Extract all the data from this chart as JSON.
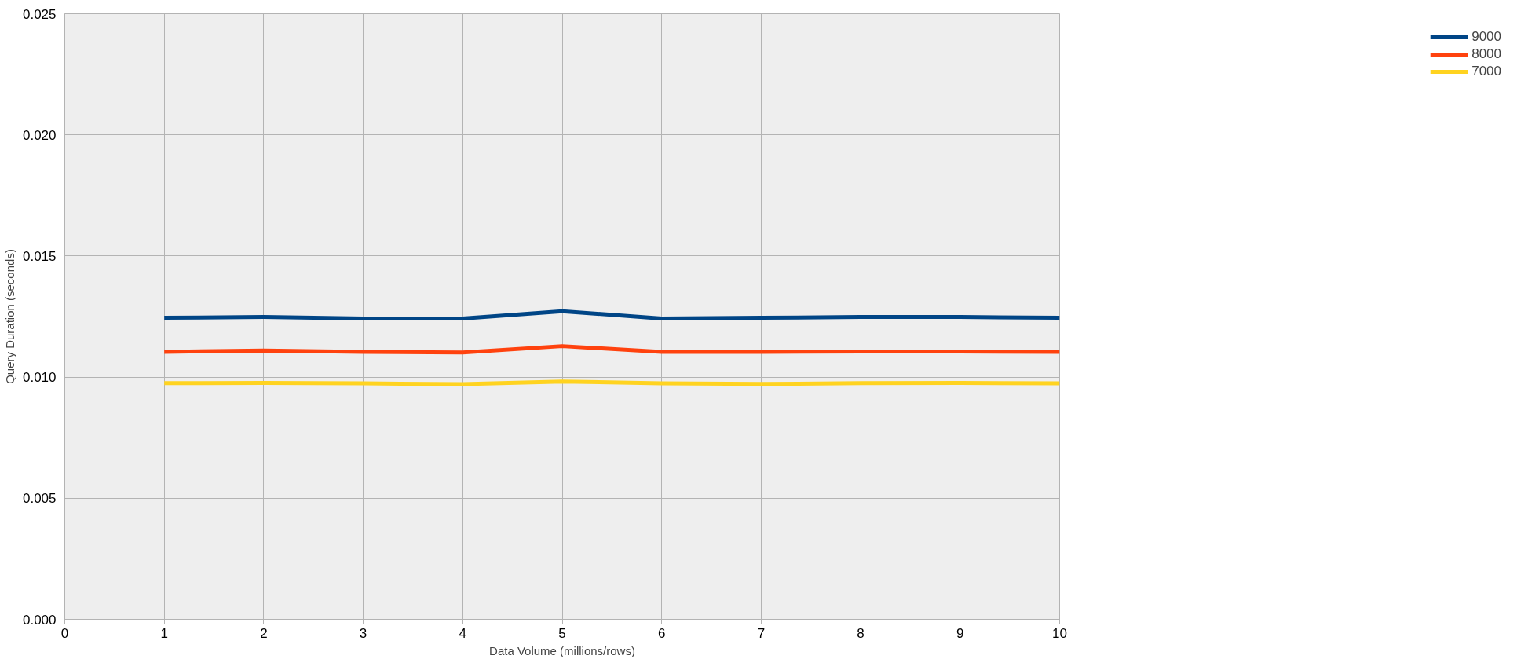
{
  "chart_data": {
    "type": "line",
    "xlabel": "Data Volume (millions/rows)",
    "ylabel": "Query Duration (seconds)",
    "x": [
      1,
      2,
      3,
      4,
      5,
      6,
      7,
      8,
      9,
      10
    ],
    "series": [
      {
        "name": "9000",
        "color": "#004586",
        "values": [
          0.01245,
          0.01248,
          0.01242,
          0.01242,
          0.01272,
          0.01242,
          0.01245,
          0.01248,
          0.01248,
          0.01245
        ]
      },
      {
        "name": "8000",
        "color": "#ff420e",
        "values": [
          0.01104,
          0.0111,
          0.01104,
          0.01102,
          0.01128,
          0.01104,
          0.01104,
          0.01106,
          0.01106,
          0.01104
        ]
      },
      {
        "name": "7000",
        "color": "#ffd320",
        "values": [
          0.00975,
          0.00976,
          0.00974,
          0.00971,
          0.00982,
          0.00974,
          0.00972,
          0.00975,
          0.00976,
          0.00974
        ]
      }
    ],
    "xlim": [
      0,
      10
    ],
    "xticks": [
      0,
      1,
      2,
      3,
      4,
      5,
      6,
      7,
      8,
      9,
      10
    ],
    "ylim": [
      0,
      0.025
    ],
    "yticks": [
      {
        "value": 0,
        "label": "0.000"
      },
      {
        "value": 0.005,
        "label": "0.005"
      },
      {
        "value": 0.01,
        "label": "0.010"
      },
      {
        "value": 0.015,
        "label": "0.015"
      },
      {
        "value": 0.02,
        "label": "0.020"
      },
      {
        "value": 0.025,
        "label": "0.025"
      }
    ],
    "grid": true,
    "legend": "right",
    "marker": "none",
    "line_style": "solid"
  }
}
